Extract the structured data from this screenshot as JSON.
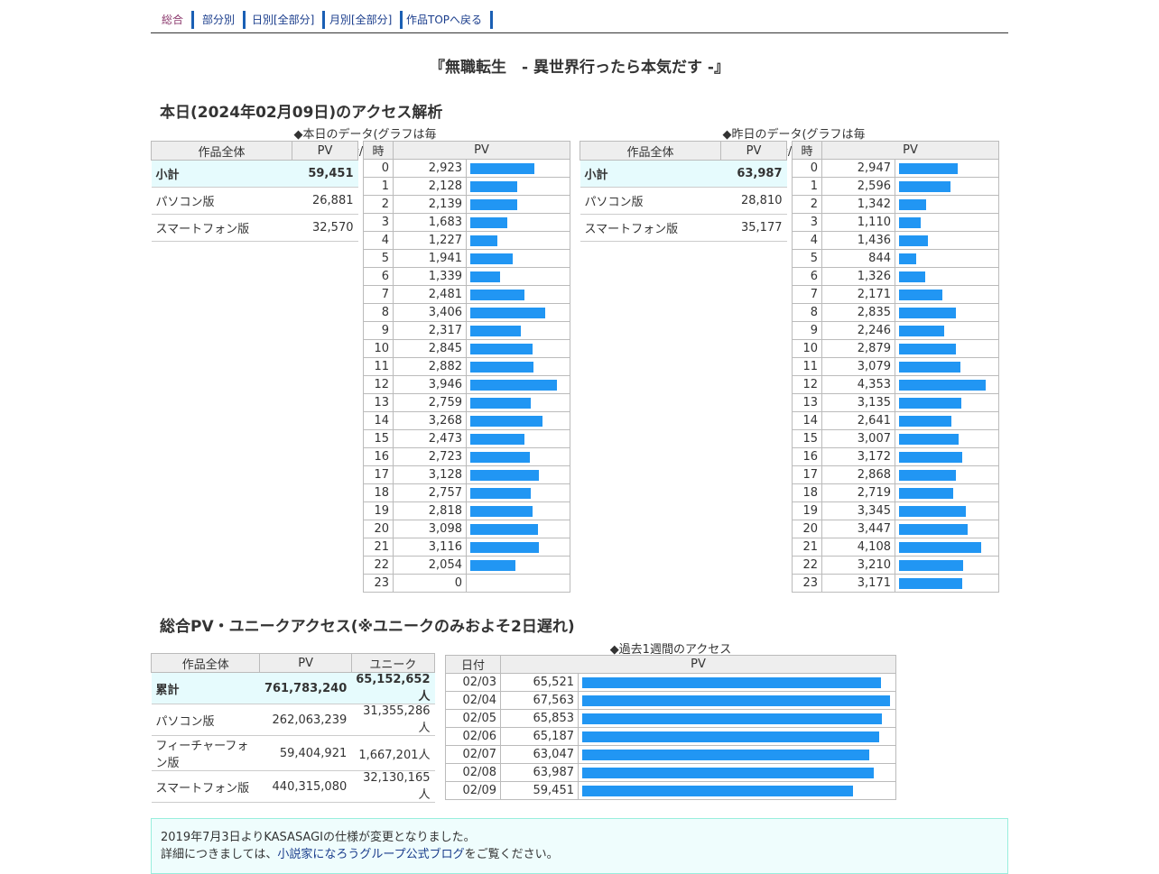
{
  "nav": [
    {
      "label": "総合",
      "active": true
    },
    {
      "label": "部分別",
      "active": false
    },
    {
      "label": "日別[全部分]",
      "active": false
    },
    {
      "label": "月別[全部分]",
      "active": false
    },
    {
      "label": "作品TOPへ戻る",
      "active": false
    }
  ],
  "work_title": "『無職転生　- 異世界行ったら本気だす -』",
  "today_heading": "本日(2024年02月09日)のアクセス解析",
  "today_caption": "◆本日のデータ(グラフは毎時/PV)",
  "yesterday_caption": "◆昨日のデータ(グラフは毎時/PV)",
  "summary_headers": {
    "work": "作品全体",
    "pv": "PV"
  },
  "hour_headers": {
    "hour": "時",
    "pv": "PV"
  },
  "today_summary": [
    {
      "label": "小計",
      "pv": "59,451"
    },
    {
      "label": "パソコン版",
      "pv": "26,881"
    },
    {
      "label": "スマートフォン版",
      "pv": "32,570"
    }
  ],
  "yesterday_summary": [
    {
      "label": "小計",
      "pv": "63,987"
    },
    {
      "label": "パソコン版",
      "pv": "28,810"
    },
    {
      "label": "スマートフォン版",
      "pv": "35,177"
    }
  ],
  "today_hours": [
    2923,
    2128,
    2139,
    1683,
    1227,
    1941,
    1339,
    2481,
    3406,
    2317,
    2845,
    2882,
    3946,
    2759,
    3268,
    2473,
    2723,
    3128,
    2757,
    2818,
    3098,
    3116,
    2054,
    0
  ],
  "yesterday_hours": [
    2947,
    2596,
    1342,
    1110,
    1436,
    844,
    1326,
    2171,
    2835,
    2246,
    2879,
    3079,
    4353,
    3135,
    2641,
    3007,
    3172,
    2868,
    2719,
    3345,
    3447,
    4108,
    3210,
    3171
  ],
  "total_heading": "総合PV・ユニークアクセス(※ユニークのみおよそ2日遅れ)",
  "total_headers": {
    "work": "作品全体",
    "pv": "PV",
    "unique": "ユニーク"
  },
  "total_summary": [
    {
      "label": "累計",
      "pv": "761,783,240",
      "unique": "65,152,652人"
    },
    {
      "label": "パソコン版",
      "pv": "262,063,239",
      "unique": "31,355,286人"
    },
    {
      "label": "フィーチャーフォン版",
      "pv": "59,404,921",
      "unique": "1,667,201人"
    },
    {
      "label": "スマートフォン版",
      "pv": "440,315,080",
      "unique": "32,130,165人"
    }
  ],
  "week_caption": "◆過去1週間のアクセス",
  "week_headers": {
    "date": "日付",
    "pv": "PV"
  },
  "week": [
    {
      "date": "02/03",
      "pv": 65521
    },
    {
      "date": "02/04",
      "pv": 67563
    },
    {
      "date": "02/05",
      "pv": 65853
    },
    {
      "date": "02/06",
      "pv": 65187
    },
    {
      "date": "02/07",
      "pv": 63047
    },
    {
      "date": "02/08",
      "pv": 63987
    },
    {
      "date": "02/09",
      "pv": 59451
    }
  ],
  "notice": {
    "line1": "2019年7月3日よりKASASAGIの仕様が変更となりました。",
    "line2_pre": "詳細につきましては、",
    "line2_link": "小説家になろうグループ公式ブログ",
    "line2_post": "をご覧ください。"
  },
  "colors": {
    "bar": "#2196f3",
    "subtotal_bg": "#e6fbfd",
    "nav_border": "#1a5fb4"
  }
}
